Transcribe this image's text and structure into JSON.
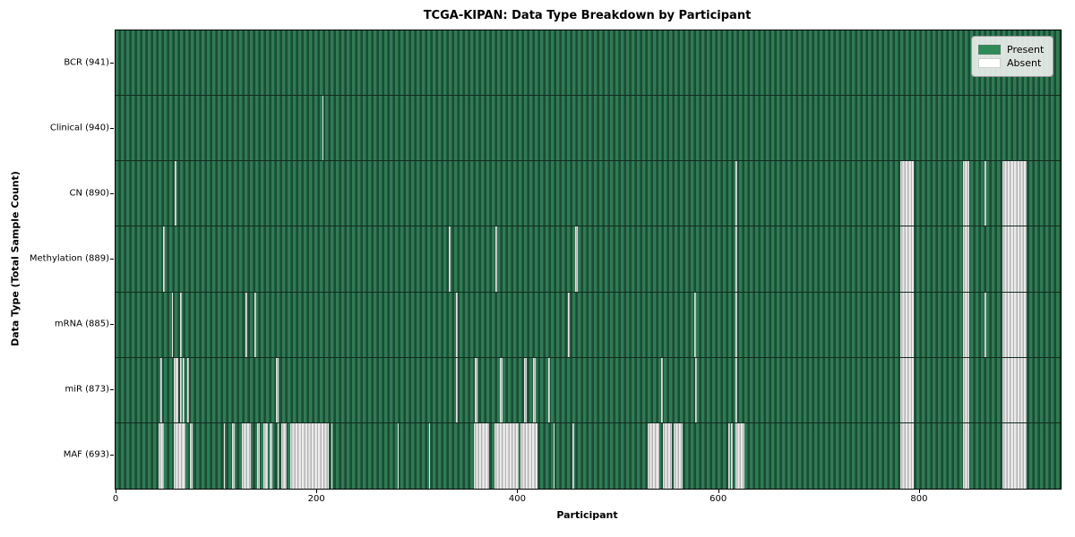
{
  "chart_data": {
    "type": "heatmap",
    "title": "TCGA-KIPAN: Data Type Breakdown by Participant",
    "xlabel": "Participant",
    "ylabel": "Data Type (Total Sample Count)",
    "x_ticks": [
      0,
      200,
      400,
      600,
      800
    ],
    "x_range": [
      0,
      941
    ],
    "grid": false,
    "legend_position": "upper right",
    "legend": [
      {
        "label": "Present",
        "color": "#2e8b57"
      },
      {
        "label": "Absent",
        "color": "#ffffff"
      }
    ],
    "colors": {
      "present": "#2e8b57",
      "absent": "#ffffff",
      "row_divider": "#122b1e"
    },
    "rows": [
      {
        "label": "BCR (941)",
        "data_type": "BCR",
        "sample_count": 941,
        "absent_ranges": []
      },
      {
        "label": "Clinical (940)",
        "data_type": "Clinical",
        "sample_count": 940,
        "absent_ranges": [
          [
            206,
            207
          ]
        ]
      },
      {
        "label": "CN (890)",
        "data_type": "CN",
        "sample_count": 890,
        "absent_ranges": [
          [
            59,
            61
          ],
          [
            617,
            619
          ],
          [
            781,
            795
          ],
          [
            844,
            850
          ],
          [
            865,
            867
          ],
          [
            883,
            907
          ]
        ]
      },
      {
        "label": "Methylation (889)",
        "data_type": "Methylation",
        "sample_count": 889,
        "absent_ranges": [
          [
            47,
            49
          ],
          [
            332,
            334
          ],
          [
            378,
            380
          ],
          [
            458,
            460
          ],
          [
            617,
            619
          ],
          [
            781,
            795
          ],
          [
            844,
            850
          ],
          [
            883,
            907
          ]
        ]
      },
      {
        "label": "mRNA (885)",
        "data_type": "mRNA",
        "sample_count": 885,
        "absent_ranges": [
          [
            56,
            57
          ],
          [
            64,
            66
          ],
          [
            129,
            131
          ],
          [
            138,
            140
          ],
          [
            339,
            341
          ],
          [
            450,
            452
          ],
          [
            576,
            578
          ],
          [
            617,
            619
          ],
          [
            781,
            795
          ],
          [
            844,
            850
          ],
          [
            865,
            867
          ],
          [
            883,
            907
          ]
        ]
      },
      {
        "label": "miR (873)",
        "data_type": "miR",
        "sample_count": 873,
        "absent_ranges": [
          [
            45,
            46
          ],
          [
            58,
            62
          ],
          [
            64,
            66
          ],
          [
            67,
            69
          ],
          [
            71,
            73
          ],
          [
            160,
            162
          ],
          [
            339,
            341
          ],
          [
            358,
            360
          ],
          [
            383,
            385
          ],
          [
            407,
            409
          ],
          [
            416,
            418
          ],
          [
            431,
            433
          ],
          [
            543,
            545
          ],
          [
            577,
            579
          ],
          [
            617,
            619
          ],
          [
            781,
            795
          ],
          [
            844,
            850
          ],
          [
            883,
            907
          ]
        ]
      },
      {
        "label": "MAF (693)",
        "data_type": "MAF",
        "sample_count": 693,
        "absent_ranges": [
          [
            43,
            48
          ],
          [
            58,
            70
          ],
          [
            74,
            77
          ],
          [
            108,
            109
          ],
          [
            116,
            119
          ],
          [
            126,
            135
          ],
          [
            141,
            144
          ],
          [
            147,
            152
          ],
          [
            153,
            156
          ],
          [
            161,
            162
          ],
          [
            165,
            170
          ],
          [
            174,
            212
          ],
          [
            215,
            216
          ],
          [
            281,
            282
          ],
          [
            312,
            313
          ],
          [
            357,
            372
          ],
          [
            377,
            401
          ],
          [
            403,
            420
          ],
          [
            436,
            437
          ],
          [
            455,
            456
          ],
          [
            530,
            541
          ],
          [
            545,
            554
          ],
          [
            556,
            565
          ],
          [
            610,
            612
          ],
          [
            613,
            615
          ],
          [
            617,
            626
          ],
          [
            781,
            795
          ],
          [
            844,
            850
          ],
          [
            883,
            907
          ]
        ]
      }
    ]
  }
}
